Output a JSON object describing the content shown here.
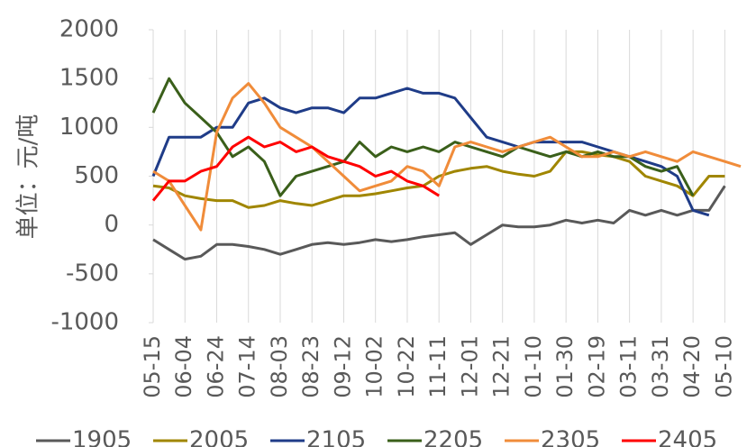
{
  "chart_data": {
    "type": "line",
    "ylabel": "单位：元/吨",
    "categories": [
      "05-15",
      null,
      "06-04",
      null,
      "06-24",
      null,
      "07-14",
      null,
      "08-03",
      null,
      "08-23",
      null,
      "09-12",
      null,
      "10-02",
      null,
      "10-22",
      null,
      "11-11",
      null,
      "12-01",
      null,
      "12-21",
      null,
      "01-10",
      null,
      "01-30",
      null,
      "02-19",
      null,
      "03-11",
      null,
      "03-31",
      null,
      "04-20",
      null,
      "05-10",
      null
    ],
    "ylim": [
      -1000,
      2000
    ],
    "yticks": [
      -1000,
      -500,
      0,
      500,
      1000,
      1500,
      2000
    ],
    "grid": "x",
    "series": [
      {
        "name": "1905",
        "color": "#595959",
        "values": [
          -150,
          -250,
          -350,
          -320,
          -200,
          -200,
          -220,
          -250,
          -300,
          -250,
          -200,
          -180,
          -200,
          -180,
          -150,
          -170,
          -150,
          -120,
          -100,
          -80,
          -200,
          -100,
          0,
          -20,
          -20,
          0,
          50,
          20,
          50,
          20,
          150,
          100,
          150,
          100,
          150,
          150,
          400,
          null
        ]
      },
      {
        "name": "2005",
        "color": "#a08600",
        "values": [
          400,
          380,
          300,
          270,
          250,
          250,
          180,
          200,
          250,
          220,
          200,
          250,
          300,
          300,
          320,
          350,
          380,
          400,
          500,
          550,
          580,
          600,
          550,
          520,
          500,
          550,
          750,
          750,
          720,
          700,
          650,
          500,
          450,
          400,
          300,
          500,
          500,
          null
        ]
      },
      {
        "name": "2105",
        "color": "#1f3c88",
        "values": [
          500,
          900,
          900,
          900,
          1000,
          1000,
          1250,
          1300,
          1200,
          1150,
          1200,
          1200,
          1150,
          1300,
          1300,
          1350,
          1400,
          1350,
          1350,
          1300,
          1100,
          900,
          850,
          800,
          850,
          850,
          850,
          850,
          800,
          750,
          700,
          650,
          600,
          500,
          150,
          100,
          null,
          null
        ]
      },
      {
        "name": "2205",
        "color": "#3a5f1a",
        "values": [
          1150,
          1500,
          1250,
          1100,
          950,
          700,
          800,
          650,
          300,
          500,
          550,
          600,
          650,
          850,
          700,
          800,
          750,
          800,
          750,
          850,
          800,
          750,
          700,
          800,
          750,
          700,
          750,
          700,
          750,
          700,
          700,
          600,
          550,
          600,
          300,
          null,
          null,
          null
        ]
      },
      {
        "name": "2305",
        "color": "#f08c3a",
        "values": [
          550,
          450,
          200,
          -50,
          950,
          1300,
          1450,
          1250,
          1000,
          900,
          800,
          650,
          500,
          350,
          400,
          450,
          600,
          550,
          400,
          800,
          850,
          800,
          750,
          800,
          850,
          900,
          800,
          700,
          700,
          750,
          700,
          750,
          700,
          650,
          750,
          700,
          650,
          600
        ]
      },
      {
        "name": "2405",
        "color": "#ff0000",
        "values": [
          250,
          450,
          450,
          550,
          600,
          800,
          900,
          800,
          850,
          750,
          800,
          700,
          650,
          600,
          500,
          550,
          450,
          400,
          300,
          null,
          null,
          null,
          null,
          null,
          null,
          null,
          null,
          null,
          null,
          null,
          null,
          null,
          null,
          null,
          null,
          null,
          null,
          null
        ]
      }
    ]
  }
}
